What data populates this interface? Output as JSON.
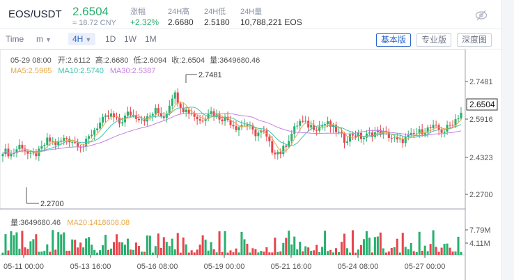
{
  "ticker": {
    "pair": "EOS/USDT",
    "price": "2.6504",
    "cny": "≈ 18.72 CNY",
    "change_label": "涨幅",
    "change_value": "+2.32%",
    "high_label": "24H高",
    "high_value": "2.6680",
    "low_label": "24H低",
    "low_value": "2.5180",
    "vol_label": "24H量",
    "vol_value": "10,788,221 EOS",
    "icon": "eye-off-icon",
    "colors": {
      "up": "#28b06e",
      "down": "#e8454d"
    }
  },
  "toolbar": {
    "time_label": "Time",
    "minute_label": "m",
    "interval_selected": "4H",
    "intervals": [
      "1D",
      "1W",
      "1M"
    ],
    "views": [
      "基本版",
      "专业版",
      "深度图"
    ],
    "active_view": "基本版"
  },
  "chart_data": {
    "type": "candlestick",
    "info_line": {
      "date": "05-29 08:00",
      "open_label": "开:",
      "open": "2.6112",
      "high_label": "高:",
      "high": "2.6680",
      "low_label": "低:",
      "low": "2.6094",
      "close_label": "收:",
      "close": "2.6504",
      "vol_label": "量:",
      "vol": "3649680.46"
    },
    "ma_line": {
      "ma5": "MA5:2.5965",
      "ma10": "MA10:2.5740",
      "ma30": "MA30:2.5387",
      "ma5_color": "#e7a94c",
      "ma10_color": "#3fc2b0",
      "ma30_color": "#c77fe0"
    },
    "y_ticks": [
      "2.7481",
      "2.5916",
      "2.4323",
      "2.2700"
    ],
    "last_price_label": "2.6504",
    "max_marker": "2.7481",
    "min_marker": "2.2700",
    "x_ticks": [
      "05-11 00:00",
      "05-13 16:00",
      "05-16 08:00",
      "05-19 00:00",
      "05-21 16:00",
      "05-24 08:00",
      "05-27 00:00"
    ],
    "volume_info": {
      "vol": "量:3649680.46",
      "ma20": "MA20:1418608.08"
    },
    "volume_ticks": [
      "7.79M",
      "4.11M"
    ],
    "ylim": [
      2.2,
      2.82
    ],
    "vol_max": 9.5,
    "close_anchors": [
      2.47,
      2.45,
      2.5,
      2.44,
      2.46,
      2.52,
      2.5,
      2.53,
      2.51,
      2.49,
      2.56,
      2.61,
      2.64,
      2.6,
      2.65,
      2.63,
      2.62,
      2.66,
      2.63,
      2.75,
      2.67,
      2.65,
      2.61,
      2.66,
      2.63,
      2.62,
      2.58,
      2.6,
      2.55,
      2.56,
      2.47,
      2.46,
      2.54,
      2.61,
      2.59,
      2.58,
      2.6,
      2.57,
      2.52,
      2.55,
      2.53,
      2.55,
      2.56,
      2.54,
      2.51,
      2.53,
      2.55,
      2.57,
      2.58,
      2.56,
      2.6,
      2.65
    ]
  }
}
